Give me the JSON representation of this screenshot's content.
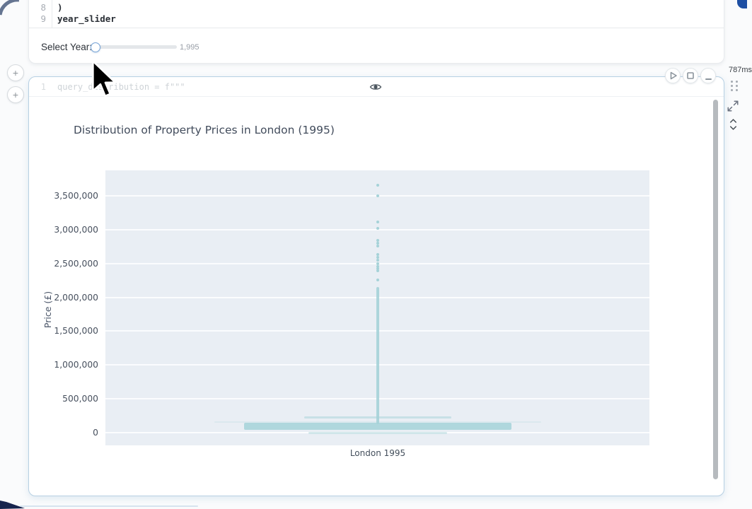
{
  "cell1": {
    "lines": [
      {
        "num": "8",
        "code": ")"
      },
      {
        "num": "9",
        "code": "year_slider"
      }
    ],
    "slider": {
      "label": "Select Year:",
      "value": "1,995"
    }
  },
  "cell2": {
    "line_num": "1",
    "code": "query_distribution = f\"\"\"",
    "runtime": "787ms"
  },
  "icons": {
    "plus": "+",
    "play": "play-icon",
    "stop": "stop-icon",
    "collapse": "minus-icon",
    "eye": "eye-icon",
    "drag_handle": "drag-handle-icon",
    "expand": "expand-icon",
    "unfold": "chevrons-up-down-icon"
  },
  "colors": {
    "accent_border": "#b7d0e3",
    "plot_bg": "#e9eef4",
    "marker": "#a5d2d8",
    "slider_accent": "#74a2d6"
  },
  "chart_data": {
    "type": "scatter",
    "title": "Distribution of Property Prices in London (1995)",
    "ylabel": "Price (£)",
    "xlabel": "",
    "x_categories": [
      "London 1995"
    ],
    "yticks": [
      0,
      500000,
      1000000,
      1500000,
      2000000,
      2500000,
      3000000,
      3500000
    ],
    "ylim": [
      -190000,
      3880000
    ],
    "grid": true,
    "legend": false,
    "plot_bg": "#e9eef4",
    "marker_color": "#a5d2d8",
    "series": [
      {
        "name": "London 1995",
        "outlier_values": [
          3660000,
          3500000,
          3110000,
          3020000,
          2840000,
          2800000,
          2760000,
          2630000,
          2590000,
          2550000,
          2500000,
          2460000,
          2420000,
          2390000,
          2260000
        ],
        "dense_line_range": [
          130000,
          2150000
        ],
        "density_bands": [
          {
            "value": 220000,
            "half_width_frac": 0.135,
            "thickness_px": 3,
            "opacity": 0.5
          },
          {
            "value": 160000,
            "half_width_frac": 0.3,
            "thickness_px": 2,
            "opacity": 0.2
          },
          {
            "value": 95000,
            "half_width_frac": 0.246,
            "thickness_px": 10,
            "opacity": 0.85
          },
          {
            "value": 0,
            "half_width_frac": 0.128,
            "thickness_px": 3,
            "opacity": 0.45
          }
        ]
      }
    ]
  }
}
